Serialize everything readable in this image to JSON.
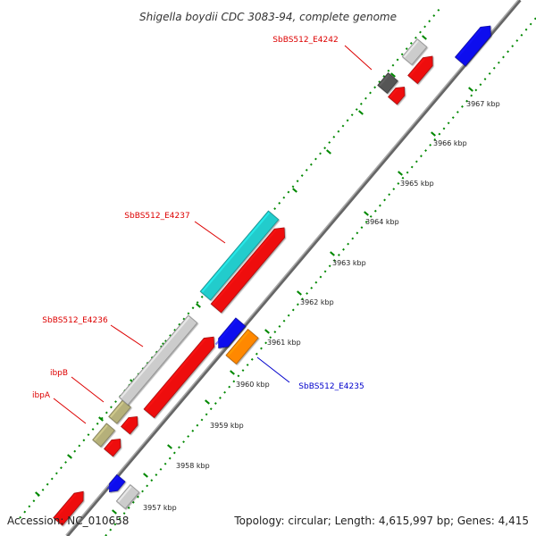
{
  "title": "Shigella boydii CDC 3083-94, complete genome",
  "footer": {
    "accession": "Accession: NC_010658",
    "topology": "Topology: circular; Length: 4,615,997 bp; Genes: 4,415"
  },
  "colors": {
    "backbone": "#888888",
    "tick": "#008800",
    "label_red": "#dd0000",
    "label_blue": "#0000cc"
  },
  "scale_labels": [
    "3957 kbp",
    "3958 kbp",
    "3959 kbp",
    "3960 kbp",
    "3961 kbp",
    "3962 kbp",
    "3963 kbp",
    "3964 kbp",
    "3965 kbp",
    "3966 kbp",
    "3967 kbp"
  ],
  "gene_labels": [
    {
      "id": "e4242",
      "text": "SbBS512_E4242",
      "color": "red"
    },
    {
      "id": "e4237",
      "text": "SbBS512_E4237",
      "color": "red"
    },
    {
      "id": "e4236",
      "text": "SbBS512_E4236",
      "color": "red"
    },
    {
      "id": "ibpB",
      "text": "ibpB",
      "color": "red"
    },
    {
      "id": "ibpA",
      "text": "ibpA",
      "color": "red"
    },
    {
      "id": "e4235",
      "text": "SbBS512_E4235",
      "color": "blue"
    }
  ],
  "features": [
    {
      "name": "ibpA-gene",
      "strand": "upper",
      "color": "#b5b07a"
    },
    {
      "name": "ibpB-gene",
      "strand": "upper",
      "color": "#b5b07a"
    },
    {
      "name": "e4236-gene",
      "strand": "upper",
      "color": "#cccccc"
    },
    {
      "name": "e4237-gene",
      "strand": "upper",
      "color": "#22cccc"
    },
    {
      "name": "e4242-gene",
      "strand": "upper",
      "color": "#555555"
    },
    {
      "name": "upper-grey-gene",
      "strand": "upper",
      "color": "#cccccc"
    },
    {
      "name": "bottom-red-gene",
      "strand": "forward",
      "color": "#ee1111"
    },
    {
      "name": "red-gene-1",
      "strand": "forward",
      "color": "#ee1111"
    },
    {
      "name": "red-gene-2",
      "strand": "forward",
      "color": "#ee1111"
    },
    {
      "name": "red-long-gene-1",
      "strand": "forward",
      "color": "#ee1111"
    },
    {
      "name": "red-long-gene-2",
      "strand": "forward",
      "color": "#ee1111"
    },
    {
      "name": "red-gene-3",
      "strand": "forward",
      "color": "#ee1111"
    },
    {
      "name": "red-gene-4",
      "strand": "forward",
      "color": "#ee1111"
    },
    {
      "name": "bottom-blue-gene",
      "strand": "reverse",
      "color": "#1111ee"
    },
    {
      "name": "bottom-grey-gene",
      "strand": "reverse",
      "color": "#cccccc"
    },
    {
      "name": "e4235-blue-gene",
      "strand": "reverse",
      "color": "#1111ee"
    },
    {
      "name": "e4235-gene",
      "strand": "reverse",
      "color": "#ff8800"
    },
    {
      "name": "top-blue-gene",
      "strand": "reverse",
      "color": "#1111ee"
    }
  ]
}
